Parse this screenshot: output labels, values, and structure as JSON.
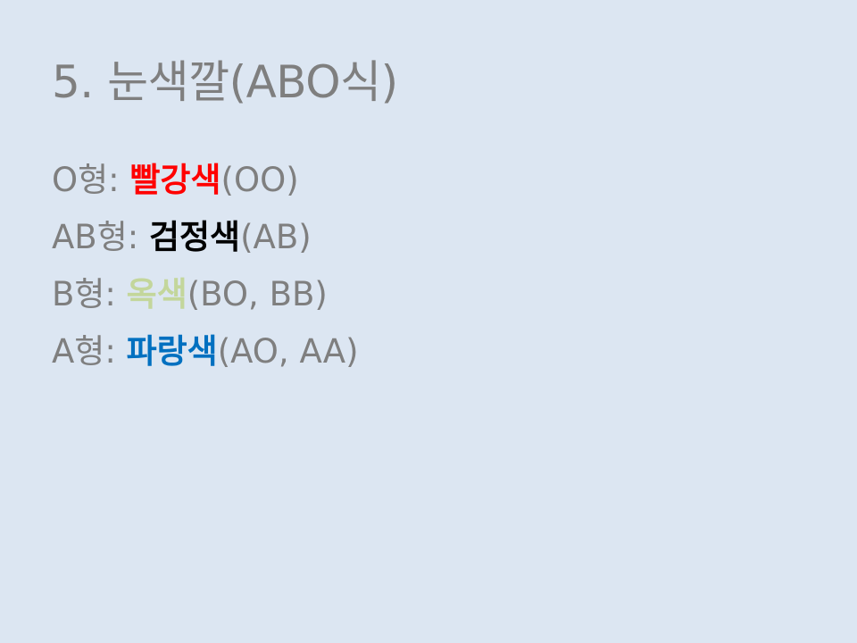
{
  "slide": {
    "title": "5. 눈색깔(ABO식)",
    "lines": [
      {
        "label": "O형: ",
        "color_word": "빨강색",
        "genotype": "(OO)",
        "color_hex": "#ff0000"
      },
      {
        "label": "AB형: ",
        "color_word": "검정색",
        "genotype": "(AB)",
        "color_hex": "#000000"
      },
      {
        "label": "B형: ",
        "color_word": "옥색",
        "genotype": "(BO, BB)",
        "color_hex": "#c3d69b"
      },
      {
        "label": "A형: ",
        "color_word": "파랑색",
        "genotype": "(AO, AA)",
        "color_hex": "#0070c0"
      }
    ]
  },
  "colors": {
    "background": "#dce6f2",
    "text": "#7f7f7f"
  }
}
